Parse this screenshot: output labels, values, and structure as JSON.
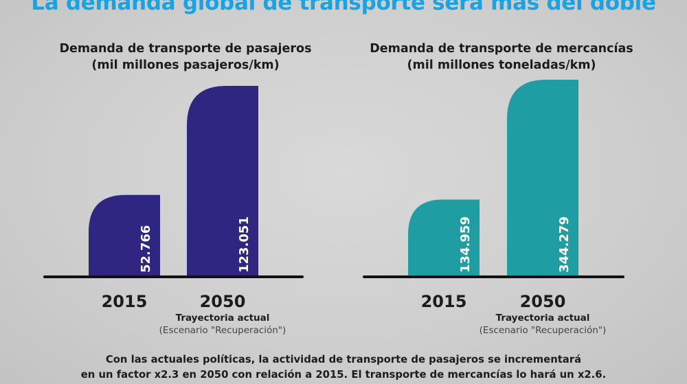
{
  "title": "La demanda global de transporte será más del doble",
  "chart_data": [
    {
      "type": "bar",
      "title": "Demanda de transporte de pasajeros",
      "subtitle": "(mil millones pasajeros/km)",
      "categories": [
        "2015",
        "2050"
      ],
      "category_notes": [
        null,
        {
          "line1": "Trayectoria actual",
          "line2": "(Escenario \"Recuperación\")"
        }
      ],
      "values": [
        52766,
        123051
      ],
      "value_labels": [
        "52.766",
        "123.051"
      ],
      "color": "#2e2680"
    },
    {
      "type": "bar",
      "title": "Demanda de transporte de mercancías",
      "subtitle": "(mil millones toneladas/km)",
      "categories": [
        "2015",
        "2050"
      ],
      "category_notes": [
        null,
        {
          "line1": "Trayectoria actual",
          "line2": "(Escenario \"Recuperación\")"
        }
      ],
      "values": [
        134959,
        344279
      ],
      "value_labels": [
        "134.959",
        "344.279"
      ],
      "color": "#1e9ea3"
    }
  ],
  "footnote": {
    "line1": "Con las actuales políticas, la actividad de transporte de pasajeros se incrementará",
    "line2": "en un factor x2.3 en 2050 con relación a 2015. El transporte de mercancías lo hará un x2.6."
  }
}
